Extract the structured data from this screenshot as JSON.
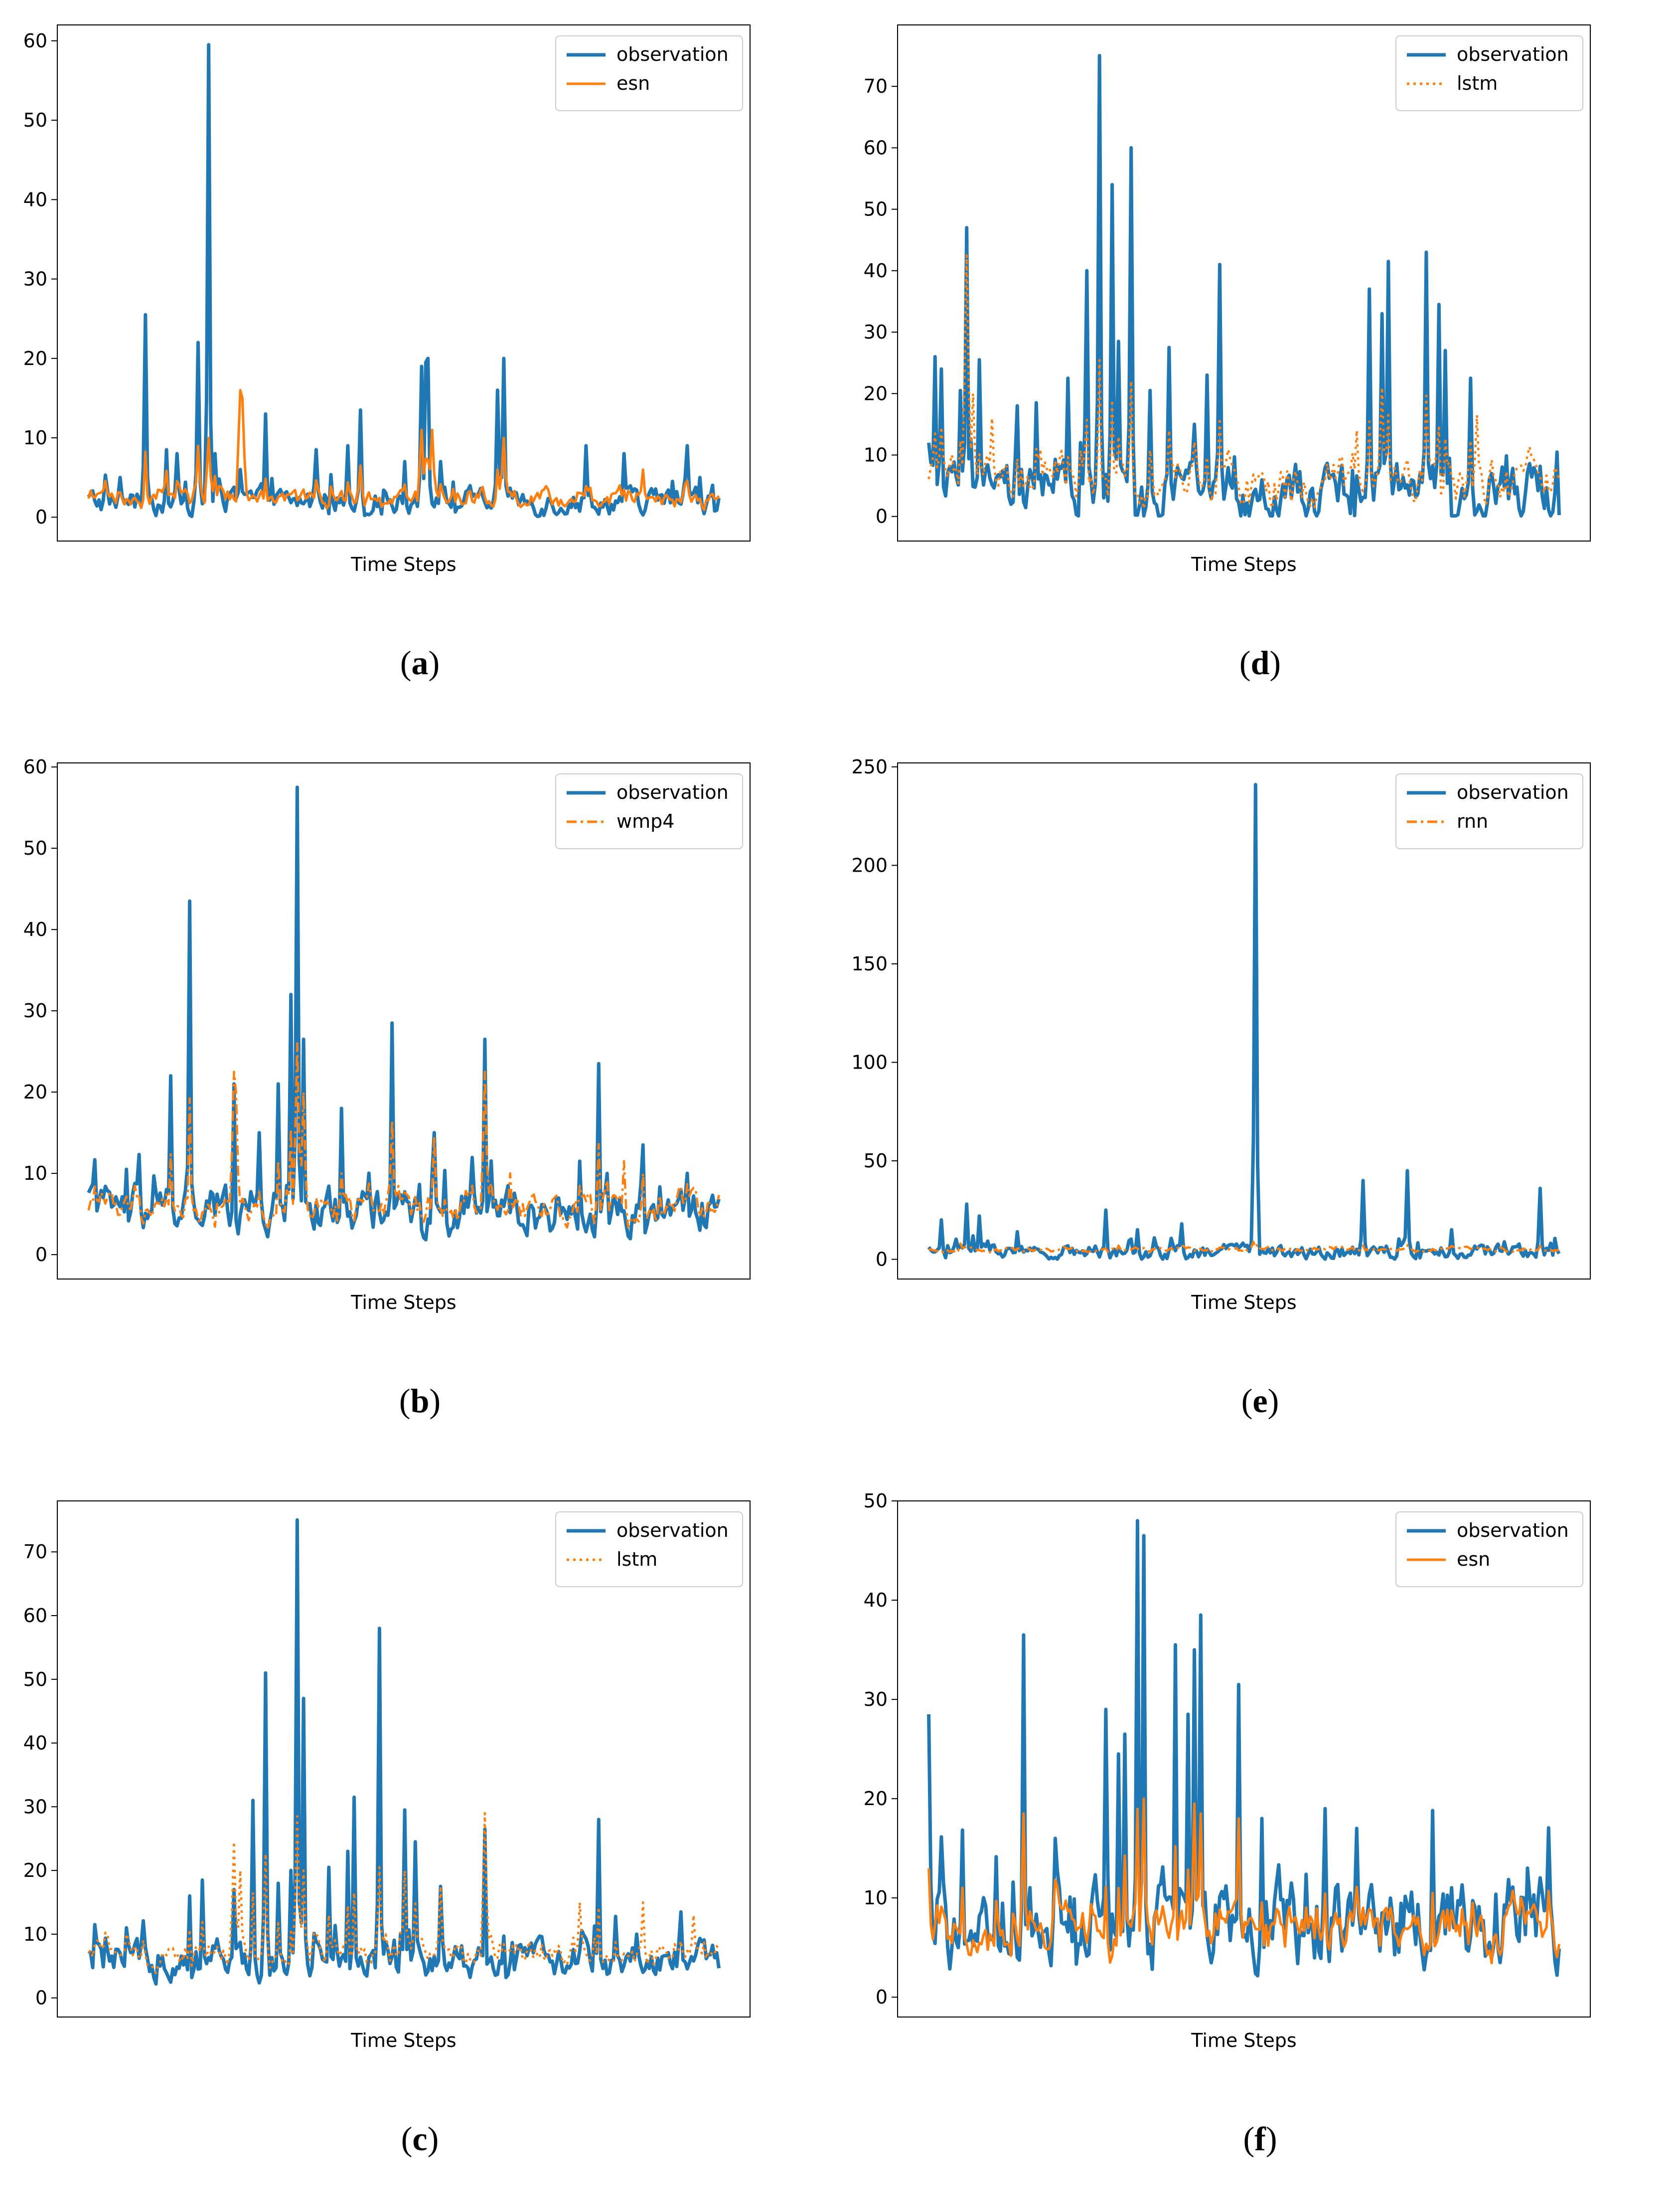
{
  "colors": {
    "observation": "#1f77b4",
    "model": "#ff7f0e"
  },
  "chart_data": [
    {
      "panel": "a",
      "caption_letter": "a",
      "type": "line",
      "xlabel": "Time Steps",
      "ylim": [
        -3,
        62
      ],
      "yticks": [
        0,
        10,
        20,
        30,
        40,
        50,
        60
      ],
      "n_points": 300,
      "base_obs": 2.0,
      "obs_noise": 1.3,
      "base_model": 2.5,
      "model_noise": 0.9,
      "model_track": 0.25,
      "series": [
        {
          "name": "observation",
          "style": "solid",
          "peaks": [
            [
              0.05,
              5
            ],
            [
              0.09,
              25.5
            ],
            [
              0.125,
              8.5
            ],
            [
              0.14,
              8
            ],
            [
              0.175,
              22
            ],
            [
              0.19,
              59.5
            ],
            [
              0.2,
              8
            ],
            [
              0.24,
              6
            ],
            [
              0.28,
              13
            ],
            [
              0.36,
              8.5
            ],
            [
              0.41,
              9
            ],
            [
              0.43,
              13.5
            ],
            [
              0.5,
              7
            ],
            [
              0.53,
              19
            ],
            [
              0.535,
              19.5
            ],
            [
              0.54,
              20
            ],
            [
              0.56,
              7
            ],
            [
              0.65,
              16
            ],
            [
              0.66,
              20
            ],
            [
              0.79,
              9
            ],
            [
              0.85,
              8
            ],
            [
              0.95,
              9
            ],
            [
              0.97,
              5
            ]
          ]
        },
        {
          "name": "esn",
          "style": "solid",
          "peaks": [
            [
              0.19,
              10
            ],
            [
              0.24,
              16
            ],
            [
              0.245,
              15
            ],
            [
              0.43,
              6.5
            ],
            [
              0.53,
              11
            ],
            [
              0.545,
              11
            ],
            [
              0.66,
              10
            ],
            [
              0.88,
              6
            ]
          ]
        }
      ]
    },
    {
      "panel": "b",
      "caption_letter": "b",
      "type": "line",
      "xlabel": "Time Steps",
      "ylim": [
        -3,
        60.5
      ],
      "yticks": [
        0,
        10,
        20,
        30,
        40,
        50,
        60
      ],
      "n_points": 300,
      "base_obs": 5.5,
      "obs_noise": 2.3,
      "base_model": 6.0,
      "model_noise": 1.3,
      "model_track": 0.35,
      "series": [
        {
          "name": "observation",
          "style": "solid",
          "peaks": [
            [
              0.06,
              10.5
            ],
            [
              0.13,
              22
            ],
            [
              0.16,
              43.5
            ],
            [
              0.23,
              21
            ],
            [
              0.27,
              15
            ],
            [
              0.3,
              21
            ],
            [
              0.32,
              32
            ],
            [
              0.33,
              57.5
            ],
            [
              0.34,
              26.5
            ],
            [
              0.4,
              18
            ],
            [
              0.48,
              28.5
            ],
            [
              0.55,
              15
            ],
            [
              0.63,
              26.5
            ],
            [
              0.78,
              11.5
            ],
            [
              0.81,
              23.5
            ],
            [
              0.88,
              13.5
            ],
            [
              0.95,
              10
            ]
          ]
        },
        {
          "name": "wmp4",
          "style": "dashdot",
          "peaks": [
            [
              0.23,
              22.5
            ],
            [
              0.235,
              20
            ],
            [
              0.33,
              26
            ],
            [
              0.34,
              20
            ],
            [
              0.4,
              10
            ],
            [
              0.48,
              16.5
            ],
            [
              0.55,
              14.5
            ],
            [
              0.63,
              22.5
            ],
            [
              0.67,
              10
            ],
            [
              0.85,
              11.5
            ],
            [
              0.88,
              10
            ]
          ]
        }
      ]
    },
    {
      "panel": "c",
      "caption_letter": "c",
      "type": "line",
      "xlabel": "Time Steps",
      "ylim": [
        -3,
        78
      ],
      "yticks": [
        0,
        10,
        20,
        30,
        40,
        50,
        60,
        70
      ],
      "n_points": 300,
      "base_obs": 6.0,
      "obs_noise": 2.3,
      "base_model": 7.0,
      "model_noise": 1.4,
      "model_track": 0.35,
      "series": [
        {
          "name": "observation",
          "style": "solid",
          "peaks": [
            [
              0.01,
              11.5
            ],
            [
              0.06,
              11
            ],
            [
              0.16,
              16
            ],
            [
              0.18,
              18.5
            ],
            [
              0.23,
              17
            ],
            [
              0.26,
              31
            ],
            [
              0.28,
              51
            ],
            [
              0.3,
              18
            ],
            [
              0.32,
              20
            ],
            [
              0.33,
              75
            ],
            [
              0.34,
              47
            ],
            [
              0.38,
              20.5
            ],
            [
              0.41,
              23
            ],
            [
              0.42,
              31.5
            ],
            [
              0.46,
              58
            ],
            [
              0.5,
              29.5
            ],
            [
              0.52,
              24.5
            ],
            [
              0.56,
              17.5
            ],
            [
              0.63,
              26.5
            ],
            [
              0.81,
              28
            ],
            [
              0.87,
              10
            ],
            [
              0.94,
              13.5
            ]
          ]
        },
        {
          "name": "lstm",
          "style": "dotted",
          "peaks": [
            [
              0.23,
              24.5
            ],
            [
              0.24,
              20
            ],
            [
              0.33,
              28.5
            ],
            [
              0.34,
              20
            ],
            [
              0.46,
              20.5
            ],
            [
              0.5,
              20
            ],
            [
              0.56,
              17.5
            ],
            [
              0.63,
              29
            ],
            [
              0.78,
              15
            ],
            [
              0.88,
              15
            ],
            [
              0.96,
              13
            ]
          ]
        }
      ]
    },
    {
      "panel": "d",
      "caption_letter": "d",
      "type": "line",
      "xlabel": "Time Steps",
      "ylim": [
        -4,
        80
      ],
      "yticks": [
        0,
        10,
        20,
        30,
        40,
        50,
        60,
        70
      ],
      "n_points": 300,
      "base_obs": 4.0,
      "obs_noise": 3.5,
      "base_model": 5.5,
      "model_noise": 2.6,
      "model_track": 0.3,
      "series": [
        {
          "name": "observation",
          "style": "solid",
          "peaks": [
            [
              0.0,
              12
            ],
            [
              0.01,
              26
            ],
            [
              0.02,
              24
            ],
            [
              0.05,
              20.5
            ],
            [
              0.06,
              47
            ],
            [
              0.08,
              25.5
            ],
            [
              0.14,
              18
            ],
            [
              0.17,
              18.5
            ],
            [
              0.22,
              22.5
            ],
            [
              0.25,
              40
            ],
            [
              0.27,
              75
            ],
            [
              0.29,
              54
            ],
            [
              0.3,
              28.5
            ],
            [
              0.32,
              60
            ],
            [
              0.35,
              20.5
            ],
            [
              0.38,
              27.5
            ],
            [
              0.42,
              15
            ],
            [
              0.44,
              23
            ],
            [
              0.46,
              41
            ],
            [
              0.7,
              37
            ],
            [
              0.72,
              33
            ],
            [
              0.73,
              41.5
            ],
            [
              0.79,
              43
            ],
            [
              0.81,
              34.5
            ],
            [
              0.82,
              27
            ],
            [
              0.86,
              22.5
            ]
          ]
        },
        {
          "name": "lstm",
          "style": "dotted",
          "peaks": [
            [
              0.06,
              42.5
            ],
            [
              0.07,
              20
            ],
            [
              0.1,
              16
            ],
            [
              0.3,
              13
            ],
            [
              0.46,
              16
            ],
            [
              0.68,
              14
            ],
            [
              0.72,
              21
            ],
            [
              0.87,
              16.5
            ]
          ]
        }
      ]
    },
    {
      "panel": "e",
      "caption_letter": "e",
      "type": "line",
      "xlabel": "Time Steps",
      "ylim": [
        -10,
        252
      ],
      "yticks": [
        0,
        50,
        100,
        150,
        200,
        250
      ],
      "n_points": 300,
      "base_obs": 4.0,
      "obs_noise": 3.0,
      "base_model": 5.0,
      "model_noise": 1.0,
      "model_track": 0.05,
      "series": [
        {
          "name": "observation",
          "style": "solid",
          "peaks": [
            [
              0.02,
              20
            ],
            [
              0.06,
              28
            ],
            [
              0.08,
              22
            ],
            [
              0.14,
              14
            ],
            [
              0.28,
              25
            ],
            [
              0.33,
              15
            ],
            [
              0.4,
              18
            ],
            [
              0.52,
              241
            ],
            [
              0.69,
              40
            ],
            [
              0.76,
              45
            ],
            [
              0.83,
              15
            ],
            [
              0.97,
              36
            ]
          ]
        },
        {
          "name": "rnn",
          "style": "dashdot",
          "peaks": [
            [
              0.05,
              8
            ],
            [
              0.3,
              7
            ],
            [
              0.52,
              6
            ]
          ]
        }
      ]
    },
    {
      "panel": "f",
      "caption_letter": "f",
      "type": "line",
      "xlabel": "Time Steps",
      "ylim": [
        -2,
        50
      ],
      "yticks": [
        0,
        10,
        20,
        30,
        40,
        50
      ],
      "n_points": 300,
      "base_obs": 7.5,
      "obs_noise": 3.6,
      "base_model": 7.0,
      "model_noise": 1.6,
      "model_track": 0.3,
      "series": [
        {
          "name": "observation",
          "style": "solid",
          "peaks": [
            [
              0.0,
              28.5
            ],
            [
              0.15,
              36.5
            ],
            [
              0.2,
              16
            ],
            [
              0.28,
              29
            ],
            [
              0.3,
              24.5
            ],
            [
              0.31,
              26.5
            ],
            [
              0.33,
              48
            ],
            [
              0.34,
              46.5
            ],
            [
              0.39,
              35.5
            ],
            [
              0.41,
              28.5
            ],
            [
              0.42,
              35
            ],
            [
              0.43,
              38.5
            ],
            [
              0.49,
              31.5
            ],
            [
              0.53,
              18
            ],
            [
              0.63,
              19
            ],
            [
              0.68,
              17
            ],
            [
              0.8,
              18.8
            ],
            [
              0.95,
              13
            ]
          ]
        },
        {
          "name": "esn",
          "style": "solid",
          "peaks": [
            [
              0.15,
              18.5
            ],
            [
              0.34,
              20
            ],
            [
              0.42,
              19.5
            ],
            [
              0.43,
              18.5
            ],
            [
              0.49,
              18
            ]
          ]
        }
      ]
    }
  ]
}
